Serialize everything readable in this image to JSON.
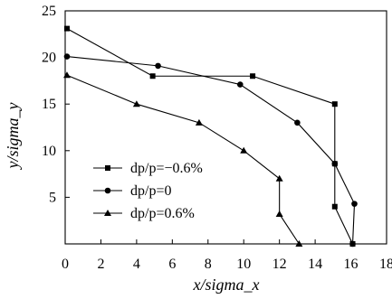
{
  "chart_data": {
    "type": "line",
    "xlabel": "x/sigma_x",
    "ylabel": "y/sigma_y",
    "xlim": [
      0,
      18
    ],
    "ylim": [
      0,
      25
    ],
    "xticks": [
      0,
      2,
      4,
      6,
      8,
      10,
      12,
      14,
      16,
      18
    ],
    "yticks": [
      5,
      10,
      15,
      20,
      25
    ],
    "grid": false,
    "legend_position": "bottom-left",
    "series": [
      {
        "name": "dp/p=−0.6%",
        "marker": "square",
        "color": "#000000",
        "x": [
          0.1,
          4.9,
          10.5,
          15.1,
          15.1,
          15.1,
          16.1
        ],
        "y": [
          23.1,
          18.0,
          18.0,
          15.0,
          8.6,
          4.0,
          0.0
        ]
      },
      {
        "name": "dp/p=0",
        "marker": "circle",
        "color": "#000000",
        "x": [
          0.1,
          5.2,
          9.8,
          13.0,
          15.1,
          16.2,
          16.1
        ],
        "y": [
          20.1,
          19.1,
          17.1,
          13.0,
          8.6,
          4.3,
          0.0
        ]
      },
      {
        "name": "dp/p=0.6%",
        "marker": "triangle",
        "color": "#000000",
        "x": [
          0.1,
          4.0,
          7.5,
          10.0,
          12.0,
          12.0,
          13.1
        ],
        "y": [
          18.1,
          15.0,
          13.0,
          10.0,
          7.0,
          3.2,
          0.0
        ]
      }
    ]
  }
}
